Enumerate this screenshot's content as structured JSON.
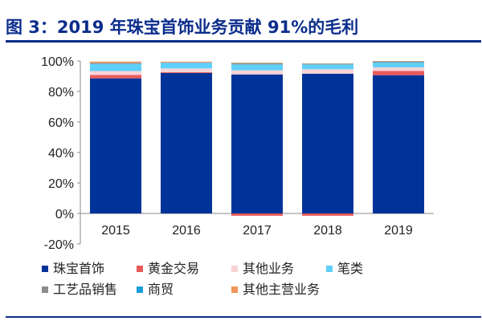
{
  "title": "图 3：2019 年珠宝首饰业务贡献 91%的毛利",
  "chart_data": {
    "type": "bar",
    "stacked": true,
    "categories": [
      "2015",
      "2016",
      "2017",
      "2018",
      "2019"
    ],
    "ylim": [
      -20,
      100
    ],
    "yticks": [
      "-20%",
      "0%",
      "20%",
      "40%",
      "60%",
      "80%",
      "100%"
    ],
    "ytick_values": [
      -20,
      0,
      20,
      40,
      60,
      80,
      100
    ],
    "grid": false,
    "legend_position": "bottom",
    "series": [
      {
        "name": "珠宝首饰",
        "color": "#003399",
        "values": [
          88.6,
          92.1,
          91.2,
          91.7,
          90.7
        ]
      },
      {
        "name": "黄金交易",
        "color": "#e85a5a",
        "values": [
          2.2,
          0.5,
          -1.5,
          -1.5,
          2.8
        ]
      },
      {
        "name": "其他业务",
        "color": "#f9d3d6",
        "values": [
          2.6,
          2.5,
          2.7,
          2.9,
          2.3
        ]
      },
      {
        "name": "笔类",
        "color": "#5fd0fa",
        "values": [
          4.7,
          3.7,
          3.8,
          3.1,
          3.0
        ]
      },
      {
        "name": "工艺品销售",
        "color": "#8c8c8c",
        "values": [
          0.7,
          0.3,
          0.4,
          0.3,
          0.3
        ]
      },
      {
        "name": "商贸",
        "color": "#1a9fd8",
        "values": [
          0,
          0,
          0.3,
          0.2,
          0.5
        ]
      },
      {
        "name": "其他主营业务",
        "color": "#f0965a",
        "values": [
          0.8,
          0.5,
          0.5,
          0.3,
          0.4
        ]
      }
    ]
  }
}
